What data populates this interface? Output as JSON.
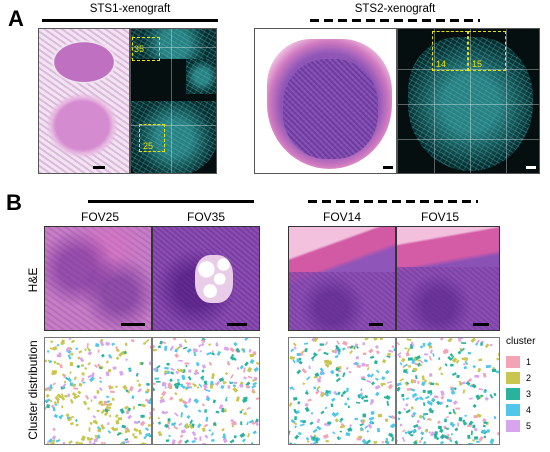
{
  "panel_a": {
    "letter": "A",
    "sts1_title": "STS1-xenograft",
    "sts2_title": "STS2-xenograft",
    "sts1_fov_labels": [
      "35",
      "25"
    ],
    "sts2_fov_labels": [
      "14",
      "15"
    ]
  },
  "panel_b": {
    "letter": "B",
    "fov_labels": [
      "FOV25",
      "FOV35",
      "FOV14",
      "FOV15"
    ],
    "row_labels": {
      "he": "H&E",
      "cluster": "Cluster distribution"
    }
  },
  "legend": {
    "title": "cluster",
    "items": [
      {
        "label": "1",
        "color": "#f4a3b4"
      },
      {
        "label": "2",
        "color": "#c9c64f"
      },
      {
        "label": "3",
        "color": "#29b39e"
      },
      {
        "label": "4",
        "color": "#4fc6ea"
      },
      {
        "label": "5",
        "color": "#d9a4ee"
      }
    ]
  },
  "colors": {
    "he_pink": "#c77fc4",
    "if_cyan": "#3cc8c8",
    "fov_box": "#e6e600"
  }
}
